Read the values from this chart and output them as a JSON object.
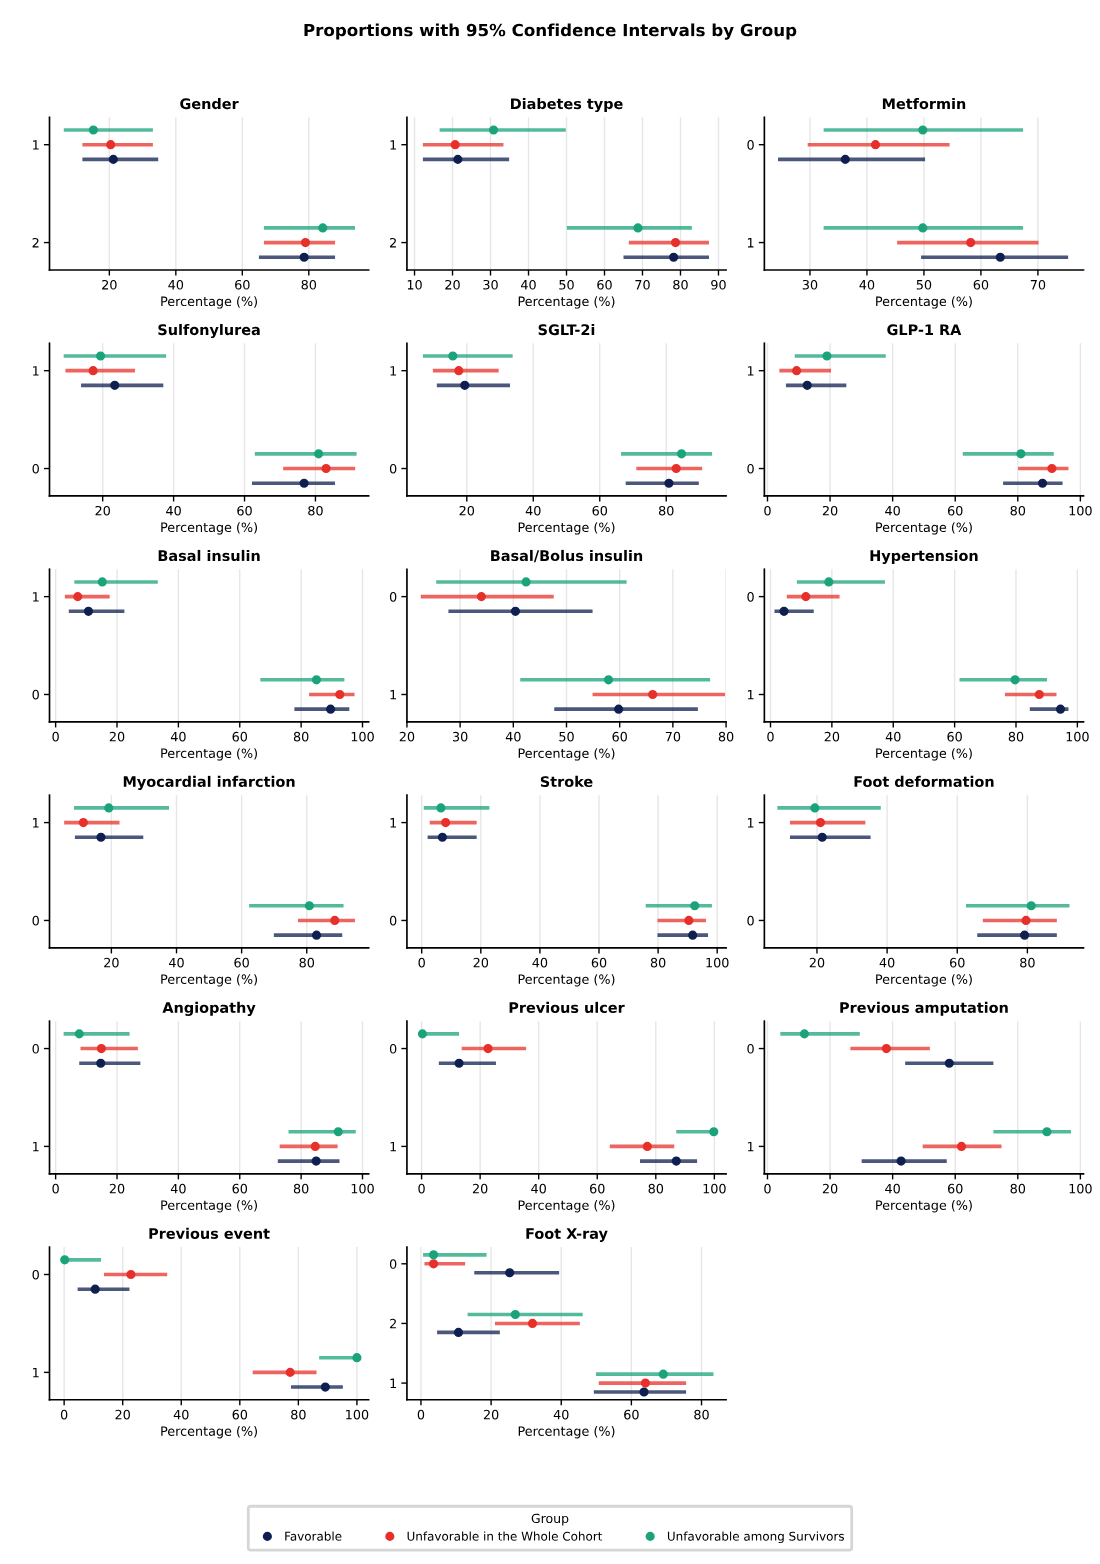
{
  "chart_data": [
    {
      "type": "scatter",
      "orientation": "horizontal",
      "title": "Gender",
      "annotations": [
        "Proportions with 95% Confidence Intervals by Group"
      ],
      "xlabel": "Percentage (%)",
      "categories": [
        "1",
        "2"
      ],
      "xlim": [
        2,
        98
      ],
      "xticks": [
        20,
        40,
        60,
        80
      ],
      "grid": "x",
      "marker": "circle",
      "legend": "bottom",
      "legend_title": "Group",
      "series": [
        {
          "name": "Favorable",
          "color": "#0f1f4f",
          "values": [
            21.2,
            78.6
          ],
          "errors": [
            [
              11.9,
              34.7
            ],
            [
              65,
              87.9
            ]
          ]
        },
        {
          "name": "Unfavorable in the Whole Cohort",
          "color": "#e8302a",
          "values": [
            20.4,
            79
          ],
          "errors": [
            [
              11.9,
              33.1
            ],
            [
              66.5,
              87.9
            ]
          ]
        },
        {
          "name": "Unfavorable among Survivors",
          "color": "#1ba37b",
          "values": [
            15.2,
            84.2
          ],
          "errors": [
            [
              6.3,
              33.1
            ],
            [
              66.5,
              93.9
            ]
          ]
        }
      ]
    },
    {
      "type": "scatter",
      "orientation": "horizontal",
      "title": "Diabetes type",
      "xlabel": "Percentage (%)",
      "categories": [
        "1",
        "2"
      ],
      "xlim": [
        8,
        92
      ],
      "xticks": [
        10,
        20,
        30,
        40,
        50,
        60,
        70,
        80,
        90
      ],
      "grid": "x",
      "marker": "circle",
      "series": [
        {
          "color": "#0f1f4f",
          "values": [
            21.4,
            78.2
          ],
          "errors": [
            [
              12.2,
              34.9
            ],
            [
              65,
              87.5
            ]
          ]
        },
        {
          "color": "#e8302a",
          "values": [
            20.7,
            78.7
          ],
          "errors": [
            [
              12.2,
              33.4
            ],
            [
              66.4,
              87.5
            ]
          ]
        },
        {
          "color": "#1ba37b",
          "values": [
            30.8,
            68.8
          ],
          "errors": [
            [
              16.6,
              49.8
            ],
            [
              50.1,
              83
            ]
          ]
        }
      ]
    },
    {
      "type": "scatter",
      "orientation": "horizontal",
      "title": "Metformin",
      "xlabel": "Percentage (%)",
      "categories": [
        "0",
        "1"
      ],
      "xlim": [
        22,
        78
      ],
      "xticks": [
        30,
        40,
        50,
        60,
        70
      ],
      "grid": "x",
      "marker": "circle",
      "series": [
        {
          "color": "#0f1f4f",
          "values": [
            36.2,
            63.4
          ],
          "errors": [
            [
              24.4,
              50.2
            ],
            [
              49.5,
              75.3
            ]
          ]
        },
        {
          "color": "#e8302a",
          "values": [
            41.5,
            58.2
          ],
          "errors": [
            [
              29.6,
              54.5
            ],
            [
              45.3,
              70.1
            ]
          ]
        },
        {
          "color": "#1ba37b",
          "values": [
            49.8,
            49.8
          ],
          "errors": [
            [
              32.4,
              67.4
            ],
            [
              32.4,
              67.4
            ]
          ]
        }
      ]
    },
    {
      "type": "scatter",
      "orientation": "horizontal",
      "title": "Sulfonylurea",
      "xlabel": "Percentage (%)",
      "categories": [
        "1",
        "0"
      ],
      "xlim": [
        5,
        95
      ],
      "xticks": [
        20,
        40,
        60,
        80
      ],
      "grid": "x",
      "marker": "circle",
      "series": [
        {
          "color": "#0f1f4f",
          "values": [
            23.4,
            76.8
          ],
          "errors": [
            [
              13.9,
              37.1
            ],
            [
              62.1,
              85.5
            ]
          ]
        },
        {
          "color": "#e8302a",
          "values": [
            17.3,
            83
          ],
          "errors": [
            [
              9.5,
              29.1
            ],
            [
              70.9,
              91.2
            ]
          ]
        },
        {
          "color": "#1ba37b",
          "values": [
            19.4,
            80.9
          ],
          "errors": [
            [
              9,
              37.9
            ],
            [
              62.9,
              91.6
            ]
          ]
        }
      ]
    },
    {
      "type": "scatter",
      "orientation": "horizontal",
      "title": "SGLT-2i",
      "xlabel": "Percentage (%)",
      "categories": [
        "1",
        "0"
      ],
      "xlim": [
        2,
        98
      ],
      "xticks": [
        20,
        40,
        60,
        80
      ],
      "grid": "x",
      "marker": "circle",
      "series": [
        {
          "color": "#0f1f4f",
          "values": [
            19.4,
            80.8
          ],
          "errors": [
            [
              11,
              33
            ],
            [
              67.8,
              89.8
            ]
          ]
        },
        {
          "color": "#e8302a",
          "values": [
            17.6,
            83
          ],
          "errors": [
            [
              9.8,
              29.6
            ],
            [
              71,
              90.8
            ]
          ]
        },
        {
          "color": "#1ba37b",
          "values": [
            15.8,
            84.6
          ],
          "errors": [
            [
              6.8,
              33.8
            ],
            [
              66.4,
              93.8
            ]
          ]
        }
      ]
    },
    {
      "type": "scatter",
      "orientation": "horizontal",
      "title": "GLP-1 RA",
      "xlabel": "Percentage (%)",
      "categories": [
        "1",
        "0"
      ],
      "xlim": [
        -1,
        101
      ],
      "xticks": [
        0,
        20,
        40,
        60,
        80,
        100
      ],
      "grid": "x",
      "marker": "circle",
      "series": [
        {
          "color": "#0f1f4f",
          "values": [
            12.7,
            87.9
          ],
          "errors": [
            [
              5.9,
              25.2
            ],
            [
              75.3,
              94.3
            ]
          ]
        },
        {
          "color": "#e8302a",
          "values": [
            9.3,
            90.9
          ],
          "errors": [
            [
              3.8,
              20.3
            ],
            [
              80.1,
              96.2
            ]
          ]
        },
        {
          "color": "#1ba37b",
          "values": [
            19,
            81
          ],
          "errors": [
            [
              8.7,
              37.8
            ],
            [
              62.4,
              91.5
            ]
          ]
        }
      ]
    },
    {
      "type": "scatter",
      "orientation": "horizontal",
      "title": "Basal insulin",
      "xlabel": "Percentage (%)",
      "categories": [
        "1",
        "0"
      ],
      "xlim": [
        -2,
        102
      ],
      "xticks": [
        0,
        20,
        40,
        60,
        80,
        100
      ],
      "grid": "x",
      "marker": "circle",
      "series": [
        {
          "color": "#0f1f4f",
          "values": [
            10.7,
            89.6
          ],
          "errors": [
            [
              4.3,
              22.4
            ],
            [
              77.8,
              95.7
            ]
          ]
        },
        {
          "color": "#e8302a",
          "values": [
            7.2,
            92.6
          ],
          "errors": [
            [
              3,
              17.6
            ],
            [
              82.6,
              97.4
            ]
          ]
        },
        {
          "color": "#1ba37b",
          "values": [
            15.2,
            85
          ],
          "errors": [
            [
              6.1,
              33.3
            ],
            [
              66.7,
              94.1
            ]
          ]
        }
      ]
    },
    {
      "type": "scatter",
      "orientation": "horizontal",
      "title": "Basal/Bolus insulin",
      "xlabel": "Percentage (%)",
      "categories": [
        "0",
        "1"
      ],
      "xlim": [
        20,
        80
      ],
      "xticks": [
        20,
        30,
        40,
        50,
        60,
        70,
        80
      ],
      "grid": "x",
      "marker": "circle",
      "series": [
        {
          "color": "#0f1f4f",
          "values": [
            40.4,
            59.8
          ],
          "errors": [
            [
              27.8,
              54.9
            ],
            [
              47.7,
              74.7
            ]
          ]
        },
        {
          "color": "#e8302a",
          "values": [
            34,
            66.2
          ],
          "errors": [
            [
              22.6,
              47.6
            ],
            [
              54.9,
              79.8
            ]
          ]
        },
        {
          "color": "#1ba37b",
          "values": [
            42.4,
            57.9
          ],
          "errors": [
            [
              25.5,
              61.3
            ],
            [
              41.3,
              77
            ]
          ]
        }
      ]
    },
    {
      "type": "scatter",
      "orientation": "horizontal",
      "title": "Hypertension",
      "xlabel": "Percentage (%)",
      "categories": [
        "0",
        "1"
      ],
      "xlim": [
        -2,
        102
      ],
      "xticks": [
        0,
        20,
        40,
        60,
        80,
        100
      ],
      "grid": "x",
      "marker": "circle",
      "series": [
        {
          "color": "#0f1f4f",
          "values": [
            4.4,
            94.5
          ],
          "errors": [
            [
              1.3,
              14.1
            ],
            [
              84.5,
              97.1
            ]
          ]
        },
        {
          "color": "#e8302a",
          "values": [
            11.5,
            87.6
          ],
          "errors": [
            [
              5.3,
              22.5
            ],
            [
              76.4,
              93.2
            ]
          ]
        },
        {
          "color": "#1ba37b",
          "values": [
            19,
            79.7
          ],
          "errors": [
            [
              8.6,
              37.3
            ],
            [
              61.6,
              90.1
            ]
          ]
        }
      ]
    },
    {
      "type": "scatter",
      "orientation": "horizontal",
      "title": "Myocardial infarction",
      "xlabel": "Percentage (%)",
      "categories": [
        "1",
        "0"
      ],
      "xlim": [
        1,
        99
      ],
      "xticks": [
        20,
        40,
        60,
        80
      ],
      "grid": "x",
      "marker": "circle",
      "series": [
        {
          "color": "#0f1f4f",
          "values": [
            16.8,
            83
          ],
          "errors": [
            [
              8.8,
              29.8
            ],
            [
              69.9,
              90.9
            ]
          ]
        },
        {
          "color": "#e8302a",
          "values": [
            11.4,
            88.6
          ],
          "errors": [
            [
              5.5,
              22.5
            ],
            [
              77.3,
              94.8
            ]
          ]
        },
        {
          "color": "#1ba37b",
          "values": [
            19.2,
            80.8
          ],
          "errors": [
            [
              8.5,
              37.7
            ],
            [
              62.3,
              91.3
            ]
          ]
        }
      ]
    },
    {
      "type": "scatter",
      "orientation": "horizontal",
      "title": "Stroke",
      "xlabel": "Percentage (%)",
      "categories": [
        "1",
        "0"
      ],
      "xlim": [
        -5,
        103
      ],
      "xticks": [
        0,
        20,
        40,
        60,
        80,
        100
      ],
      "grid": "x",
      "marker": "circle",
      "series": [
        {
          "color": "#0f1f4f",
          "values": [
            7,
            91.7
          ],
          "errors": [
            [
              2,
              18.6
            ],
            [
              79.8,
              96.9
            ]
          ]
        },
        {
          "color": "#e8302a",
          "values": [
            8.1,
            90.4
          ],
          "errors": [
            [
              2.7,
              18.6
            ],
            [
              79.8,
              96.2
            ]
          ]
        },
        {
          "color": "#1ba37b",
          "values": [
            6.5,
            92.4
          ],
          "errors": [
            [
              0.7,
              22.9
            ],
            [
              75.8,
              98.2
            ]
          ]
        }
      ]
    },
    {
      "type": "scatter",
      "orientation": "horizontal",
      "title": "Foot deformation",
      "xlabel": "Percentage (%)",
      "categories": [
        "1",
        "0"
      ],
      "xlim": [
        5,
        96
      ],
      "xticks": [
        20,
        40,
        60,
        80
      ],
      "grid": "x",
      "marker": "circle",
      "series": [
        {
          "color": "#0f1f4f",
          "values": [
            21.5,
            79.2
          ],
          "errors": [
            [
              12.3,
              35.3
            ],
            [
              65.7,
              88.4
            ]
          ]
        },
        {
          "color": "#e8302a",
          "values": [
            21,
            79.6
          ],
          "errors": [
            [
              12.3,
              33.8
            ],
            [
              67.3,
              88.4
            ]
          ]
        },
        {
          "color": "#1ba37b",
          "values": [
            19.4,
            81.1
          ],
          "errors": [
            [
              8.7,
              38.2
            ],
            [
              62.5,
              92
            ]
          ]
        }
      ]
    },
    {
      "type": "scatter",
      "orientation": "horizontal",
      "title": "Angiopathy",
      "xlabel": "Percentage (%)",
      "categories": [
        "0",
        "1"
      ],
      "xlim": [
        -2,
        102
      ],
      "xticks": [
        0,
        20,
        40,
        60,
        80,
        100
      ],
      "grid": "x",
      "marker": "circle",
      "series": [
        {
          "color": "#0f1f4f",
          "values": [
            14.7,
            84.9
          ],
          "errors": [
            [
              7.7,
              27.6
            ],
            [
              72.4,
              92.5
            ]
          ]
        },
        {
          "color": "#e8302a",
          "values": [
            14.9,
            84.6
          ],
          "errors": [
            [
              8.1,
              26.8
            ],
            [
              73,
              91.9
            ]
          ]
        },
        {
          "color": "#1ba37b",
          "values": [
            7.7,
            92.1
          ],
          "errors": [
            [
              2.6,
              24.1
            ],
            [
              75.9,
              97.8
            ]
          ]
        }
      ]
    },
    {
      "type": "scatter",
      "orientation": "horizontal",
      "title": "Previous ulcer",
      "xlabel": "Percentage (%)",
      "categories": [
        "0",
        "1"
      ],
      "xlim": [
        -5,
        104
      ],
      "xticks": [
        0,
        20,
        40,
        60,
        80,
        100
      ],
      "grid": "x",
      "marker": "circle",
      "series": [
        {
          "color": "#0f1f4f",
          "values": [
            12.8,
            87
          ],
          "errors": [
            [
              5.9,
              25.4
            ],
            [
              74.6,
              94.1
            ]
          ]
        },
        {
          "color": "#e8302a",
          "values": [
            22.7,
            77.1
          ],
          "errors": [
            [
              13.7,
              35.7
            ],
            [
              64.3,
              86.3
            ]
          ]
        },
        {
          "color": "#1ba37b",
          "values": [
            0.3,
            99.8
          ],
          "errors": [
            [
              0,
              12.8
            ],
            [
              87,
              100
            ]
          ]
        }
      ]
    },
    {
      "type": "scatter",
      "orientation": "horizontal",
      "title": "Previous amputation",
      "xlabel": "Percentage (%)",
      "categories": [
        "0",
        "1"
      ],
      "xlim": [
        -1,
        101
      ],
      "xticks": [
        0,
        20,
        40,
        60,
        80,
        100
      ],
      "grid": "x",
      "marker": "circle",
      "series": [
        {
          "color": "#0f1f4f",
          "values": [
            58.1,
            42.7
          ],
          "errors": [
            [
              44,
              72.2
            ],
            [
              30.1,
              57.3
            ]
          ]
        },
        {
          "color": "#e8302a",
          "values": [
            38,
            62
          ],
          "errors": [
            [
              26.5,
              51.9
            ],
            [
              49.6,
              74.8
            ]
          ]
        },
        {
          "color": "#1ba37b",
          "values": [
            11.8,
            89.3
          ],
          "errors": [
            [
              4.1,
              29.5
            ],
            [
              72.2,
              97
            ]
          ]
        }
      ]
    },
    {
      "type": "scatter",
      "orientation": "horizontal",
      "title": "Previous event",
      "xlabel": "Percentage (%)",
      "categories": [
        "0",
        "1"
      ],
      "xlim": [
        -5,
        104
      ],
      "xticks": [
        0,
        20,
        40,
        60,
        80,
        100
      ],
      "grid": "x",
      "marker": "circle",
      "series": [
        {
          "color": "#0f1f4f",
          "values": [
            10.6,
            89.2
          ],
          "errors": [
            [
              4.6,
              22.3
            ],
            [
              77.5,
              95.2
            ]
          ]
        },
        {
          "color": "#e8302a",
          "values": [
            22.8,
            77.2
          ],
          "errors": [
            [
              13.6,
              35.2
            ],
            [
              64.4,
              86.2
            ]
          ]
        },
        {
          "color": "#1ba37b",
          "values": [
            0.2,
            100
          ],
          "errors": [
            [
              0,
              12.6
            ],
            [
              87.1,
              100
            ]
          ]
        }
      ]
    },
    {
      "type": "scatter",
      "orientation": "horizontal",
      "title": "Foot X-ray",
      "xlabel": "Percentage (%)",
      "categories": [
        "0",
        "2",
        "1"
      ],
      "xlim": [
        -4,
        87
      ],
      "xticks": [
        0,
        20,
        40,
        60,
        80
      ],
      "grid": "x",
      "marker": "circle",
      "series": [
        {
          "color": "#0f1f4f",
          "values": [
            25.3,
            10.7,
            63.6
          ],
          "errors": [
            [
              15.2,
              39.4
            ],
            [
              4.6,
              22.5
            ],
            [
              49.3,
              75.6
            ]
          ]
        },
        {
          "color": "#e8302a",
          "values": [
            3.6,
            31.8,
            64
          ],
          "errors": [
            [
              1,
              12.6
            ],
            [
              21.1,
              45.3
            ],
            [
              50.7,
              75.6
            ]
          ]
        },
        {
          "color": "#1ba37b",
          "values": [
            3.6,
            26.9,
            69.1
          ],
          "errors": [
            [
              0.6,
              18.7
            ],
            [
              13.3,
              46.1
            ],
            [
              49.9,
              83.4
            ]
          ]
        }
      ]
    }
  ]
}
